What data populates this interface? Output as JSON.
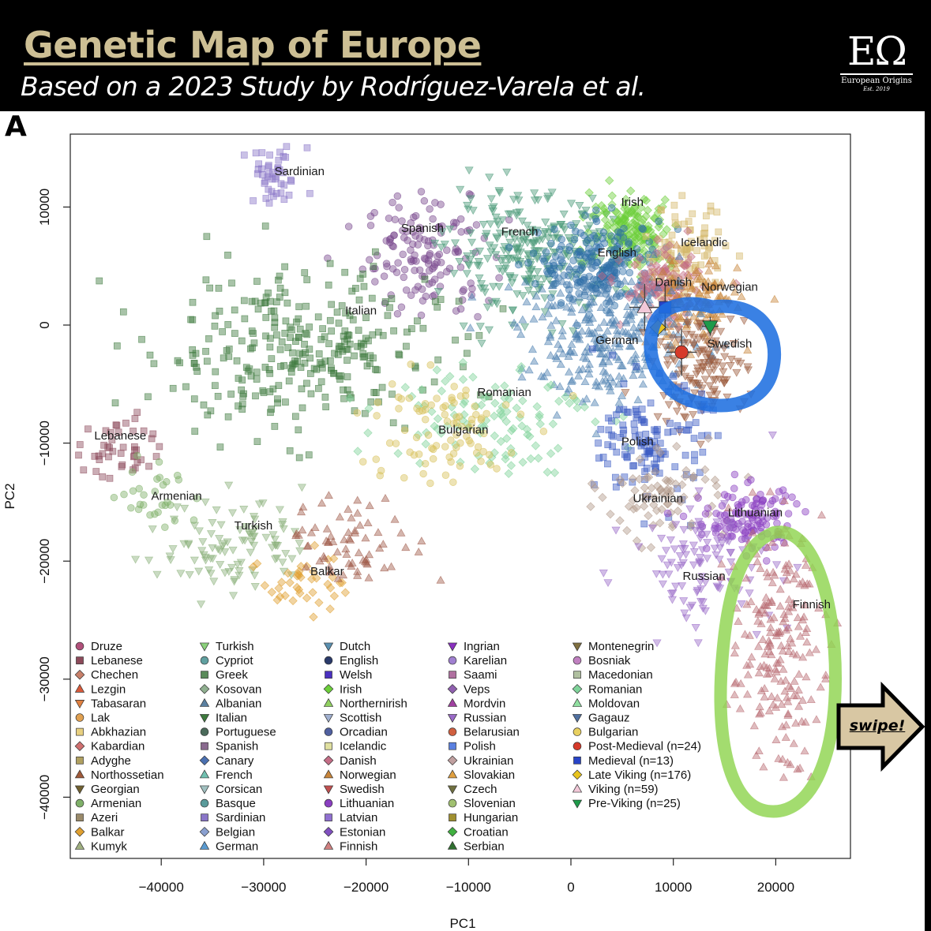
{
  "header": {
    "title": "Genetic Map of Europe",
    "subtitle": "Based on a 2023 Study by Rodríguez-Varela et al."
  },
  "logo": {
    "mark": "EΩ",
    "name": "European Origins",
    "est": "Est. 2019"
  },
  "panel_letter": "A",
  "swipe_label": "swipe!",
  "colors": {
    "highlight_blue": "#1f6fe0",
    "highlight_green": "#8fd44f",
    "arrow_fill": "#d8c7a3"
  },
  "chart_data": {
    "type": "scatter",
    "xlabel": "PC1",
    "ylabel": "PC2",
    "xlim": [
      -48000,
      27000
    ],
    "ylim": [
      -45000,
      16000
    ],
    "xticks": [
      -40000,
      -30000,
      -20000,
      -10000,
      0,
      10000,
      20000
    ],
    "yticks": [
      10000,
      0,
      -10000,
      -20000,
      -30000,
      -40000
    ],
    "grid": false,
    "legend": "bottom, five columns",
    "clusters": [
      {
        "name": "Sardinian",
        "x": -29000,
        "y": 12500,
        "sx": 1600,
        "sy": 1300,
        "n": 45,
        "color": "#8a76c8",
        "shape": "square"
      },
      {
        "name": "Spanish",
        "x": -14000,
        "y": 6000,
        "sx": 3000,
        "sy": 2500,
        "n": 140,
        "color": "#7a4a8f",
        "shape": "circle"
      },
      {
        "name": "Italian",
        "x": -27000,
        "y": -2000,
        "sx": 7000,
        "sy": 3500,
        "n": 300,
        "color": "#3d7a3d",
        "shape": "square"
      },
      {
        "name": "French",
        "x": -4000,
        "y": 6000,
        "sx": 4000,
        "sy": 2500,
        "n": 260,
        "color": "#4a9a78",
        "shape": "triangle-down"
      },
      {
        "name": "Irish",
        "x": 6000,
        "y": 8000,
        "sx": 2000,
        "sy": 1500,
        "n": 170,
        "color": "#6ccf3a",
        "shape": "diamond"
      },
      {
        "name": "English",
        "x": 3000,
        "y": 5000,
        "sx": 3000,
        "sy": 1800,
        "n": 220,
        "color": "#2f6fa8",
        "shape": "circle"
      },
      {
        "name": "Icelandic",
        "x": 11000,
        "y": 6000,
        "sx": 2000,
        "sy": 2000,
        "n": 90,
        "color": "#d4b96a",
        "shape": "square"
      },
      {
        "name": "Danish",
        "x": 9000,
        "y": 3000,
        "sx": 2000,
        "sy": 1500,
        "n": 110,
        "color": "#c46d86",
        "shape": "diamond"
      },
      {
        "name": "Norwegian",
        "x": 12000,
        "y": 2000,
        "sx": 2200,
        "sy": 2000,
        "n": 120,
        "color": "#c8853a",
        "shape": "triangle"
      },
      {
        "name": "German",
        "x": 4000,
        "y": -1000,
        "sx": 4500,
        "sy": 2800,
        "n": 280,
        "color": "#4b7fb0",
        "shape": "triangle"
      },
      {
        "name": "Swedish",
        "x": 12500,
        "y": -3500,
        "sx": 2300,
        "sy": 2300,
        "n": 140,
        "color": "#9c5a3c",
        "shape": "triangle-down"
      },
      {
        "name": "Romanian",
        "x": -8000,
        "y": -7500,
        "sx": 5000,
        "sy": 2500,
        "n": 110,
        "color": "#7fd39a",
        "shape": "diamond"
      },
      {
        "name": "Bulgarian",
        "x": -13000,
        "y": -9000,
        "sx": 4000,
        "sy": 2500,
        "n": 90,
        "color": "#d8c25a",
        "shape": "circle"
      },
      {
        "name": "Polish",
        "x": 8000,
        "y": -10000,
        "sx": 2500,
        "sy": 2500,
        "n": 130,
        "color": "#3b5cc4",
        "shape": "square"
      },
      {
        "name": "Ukrainian",
        "x": 9000,
        "y": -14500,
        "sx": 3000,
        "sy": 1800,
        "n": 80,
        "color": "#b29a8a",
        "shape": "diamond"
      },
      {
        "name": "Lithuanian",
        "x": 17000,
        "y": -16500,
        "sx": 2500,
        "sy": 1500,
        "n": 120,
        "color": "#8a3fc0",
        "shape": "circle"
      },
      {
        "name": "Russian",
        "x": 13000,
        "y": -20000,
        "sx": 3500,
        "sy": 2500,
        "n": 110,
        "color": "#9a6ac8",
        "shape": "triangle-down"
      },
      {
        "name": "Finnish",
        "x": 20000,
        "y": -27000,
        "sx": 2200,
        "sy": 5000,
        "n": 200,
        "color": "#b86a72",
        "shape": "triangle"
      },
      {
        "name": "Lebanese",
        "x": -44000,
        "y": -10500,
        "sx": 1800,
        "sy": 1500,
        "n": 45,
        "color": "#8c4a5a",
        "shape": "square"
      },
      {
        "name": "Armenian",
        "x": -40000,
        "y": -14500,
        "sx": 2000,
        "sy": 1500,
        "n": 30,
        "color": "#7fb069",
        "shape": "circle"
      },
      {
        "name": "Turkish",
        "x": -33000,
        "y": -18500,
        "sx": 3500,
        "sy": 2000,
        "n": 100,
        "color": "#8ab07a",
        "shape": "triangle-down"
      },
      {
        "name": "Balkar",
        "x": -26000,
        "y": -21500,
        "sx": 2000,
        "sy": 1500,
        "n": 40,
        "color": "#e0a030",
        "shape": "diamond"
      },
      {
        "name": "Kumyk",
        "x": -21000,
        "y": -18500,
        "sx": 3500,
        "sy": 1800,
        "n": 70,
        "color": "#a05a4a",
        "shape": "triangle"
      }
    ],
    "labels": [
      {
        "text": "Sardinian",
        "x": -26500,
        "y": 12700
      },
      {
        "text": "Spanish",
        "x": -14500,
        "y": 7900
      },
      {
        "text": "French",
        "x": -5000,
        "y": 7600
      },
      {
        "text": "Irish",
        "x": 6000,
        "y": 10100
      },
      {
        "text": "English",
        "x": 4500,
        "y": 5800
      },
      {
        "text": "Icelandic",
        "x": 13000,
        "y": 6700
      },
      {
        "text": "Danish",
        "x": 10000,
        "y": 3300
      },
      {
        "text": "Norwegian",
        "x": 15500,
        "y": 2900
      },
      {
        "text": "Italian",
        "x": -20500,
        "y": 900
      },
      {
        "text": "German",
        "x": 4500,
        "y": -1600
      },
      {
        "text": "Swedish",
        "x": 15500,
        "y": -1900
      },
      {
        "text": "Romanian",
        "x": -6500,
        "y": -6000
      },
      {
        "text": "Bulgarian",
        "x": -10500,
        "y": -9200
      },
      {
        "text": "Polish",
        "x": 6500,
        "y": -10200
      },
      {
        "text": "Ukrainian",
        "x": 8500,
        "y": -15000
      },
      {
        "text": "Lithuanian",
        "x": 18000,
        "y": -16200
      },
      {
        "text": "Russian",
        "x": 13000,
        "y": -21600
      },
      {
        "text": "Finnish",
        "x": 23500,
        "y": -24000
      },
      {
        "text": "Lebanese",
        "x": -44000,
        "y": -9700
      },
      {
        "text": "Armenian",
        "x": -38500,
        "y": -14800
      },
      {
        "text": "Turkish",
        "x": -31000,
        "y": -17300
      },
      {
        "text": "Balkar",
        "x": -23800,
        "y": -21200
      }
    ],
    "ancient_samples": [
      {
        "name": "Post-Medieval (n=24)",
        "x": 10800,
        "y": -2300,
        "ex": 1500,
        "ey": 2000,
        "color": "#d63a2a",
        "shape": "circle"
      },
      {
        "name": "Medieval (n=13)",
        "x": 9200,
        "y": 1500,
        "ex": 1500,
        "ey": 2000,
        "color": "#2844c8",
        "shape": "square"
      },
      {
        "name": "Late Viking (n=176)",
        "x": 8500,
        "y": -200,
        "ex": 800,
        "ey": 800,
        "color": "#e8c41e",
        "shape": "diamond"
      },
      {
        "name": "Viking (n=59)",
        "x": 7200,
        "y": 1500,
        "ex": 1500,
        "ey": 2000,
        "color": "#f2c8d8",
        "shape": "triangle"
      },
      {
        "name": "Pre-Viking (n=25)",
        "x": 13600,
        "y": -100,
        "ex": 800,
        "ey": 800,
        "color": "#1e9a4a",
        "shape": "triangle-down"
      }
    ],
    "legend_columns": [
      [
        {
          "label": "Druze",
          "shape": "circle",
          "color": "#b0507a"
        },
        {
          "label": "Lebanese",
          "shape": "square",
          "color": "#8c4a5a"
        },
        {
          "label": "Chechen",
          "shape": "diamond",
          "color": "#c8806a"
        },
        {
          "label": "Lezgin",
          "shape": "triangle",
          "color": "#d85a3a"
        },
        {
          "label": "Tabasaran",
          "shape": "triangle-down",
          "color": "#e08040"
        },
        {
          "label": "Lak",
          "shape": "circle",
          "color": "#e0a050"
        },
        {
          "label": "Abkhazian",
          "shape": "square",
          "color": "#e8d080"
        },
        {
          "label": "Kabardian",
          "shape": "diamond",
          "color": "#d07070"
        },
        {
          "label": "Adyghe",
          "shape": "square",
          "color": "#b0a060"
        },
        {
          "label": "Northossetian",
          "shape": "triangle",
          "color": "#a05a3a"
        },
        {
          "label": "Georgian",
          "shape": "triangle-down",
          "color": "#706030"
        },
        {
          "label": "Armenian",
          "shape": "circle",
          "color": "#7fb069"
        },
        {
          "label": "Azeri",
          "shape": "square",
          "color": "#9a8a6a"
        },
        {
          "label": "Balkar",
          "shape": "diamond",
          "color": "#e0a030"
        },
        {
          "label": "Kumyk",
          "shape": "triangle",
          "color": "#a0b080"
        }
      ],
      [
        {
          "label": "Turkish",
          "shape": "triangle-down",
          "color": "#8ad07a"
        },
        {
          "label": "Cypriot",
          "shape": "circle",
          "color": "#60a0a0"
        },
        {
          "label": "Greek",
          "shape": "square",
          "color": "#5a8a5a"
        },
        {
          "label": "Kosovan",
          "shape": "diamond",
          "color": "#90b090"
        },
        {
          "label": "Albanian",
          "shape": "triangle",
          "color": "#5a80a0"
        },
        {
          "label": "Italian",
          "shape": "triangle-down",
          "color": "#3d7a3d"
        },
        {
          "label": "Portuguese",
          "shape": "circle",
          "color": "#4a6a5a"
        },
        {
          "label": "Spanish",
          "shape": "square",
          "color": "#8a6a8f"
        },
        {
          "label": "Canary",
          "shape": "diamond",
          "color": "#4a70b0"
        },
        {
          "label": "French",
          "shape": "triangle",
          "color": "#70c0b0"
        },
        {
          "label": "Corsican",
          "shape": "triangle-down",
          "color": "#a0c0c0"
        },
        {
          "label": "Basque",
          "shape": "circle",
          "color": "#5a9a9a"
        },
        {
          "label": "Sardinian",
          "shape": "square",
          "color": "#8a76c8"
        },
        {
          "label": "Belgian",
          "shape": "diamond",
          "color": "#8aa0d0"
        },
        {
          "label": "German",
          "shape": "triangle",
          "color": "#5a9ad0"
        }
      ],
      [
        {
          "label": "Dutch",
          "shape": "triangle-down",
          "color": "#5a90b0"
        },
        {
          "label": "English",
          "shape": "circle",
          "color": "#2a3a6a"
        },
        {
          "label": "Welsh",
          "shape": "square",
          "color": "#4a30c0"
        },
        {
          "label": "Irish",
          "shape": "diamond",
          "color": "#6ccf3a"
        },
        {
          "label": "Northernirish",
          "shape": "triangle",
          "color": "#90d060"
        },
        {
          "label": "Scottish",
          "shape": "triangle-down",
          "color": "#a0b0d0"
        },
        {
          "label": "Orcadian",
          "shape": "circle",
          "color": "#5060a0"
        },
        {
          "label": "Icelandic",
          "shape": "square",
          "color": "#e0e0a0"
        },
        {
          "label": "Danish",
          "shape": "diamond",
          "color": "#c46d86"
        },
        {
          "label": "Norwegian",
          "shape": "triangle",
          "color": "#c8853a"
        },
        {
          "label": "Swedish",
          "shape": "triangle-down",
          "color": "#c05050"
        },
        {
          "label": "Lithuanian",
          "shape": "circle",
          "color": "#8a3fc0"
        },
        {
          "label": "Latvian",
          "shape": "square",
          "color": "#9070d0"
        },
        {
          "label": "Estonian",
          "shape": "diamond",
          "color": "#8050c0"
        },
        {
          "label": "Finnish",
          "shape": "triangle",
          "color": "#d08080"
        }
      ],
      [
        {
          "label": "Ingrian",
          "shape": "triangle-down",
          "color": "#8a30c0"
        },
        {
          "label": "Karelian",
          "shape": "circle",
          "color": "#a080d0"
        },
        {
          "label": "Saami",
          "shape": "square",
          "color": "#b070a0"
        },
        {
          "label": "Veps",
          "shape": "diamond",
          "color": "#9060b0"
        },
        {
          "label": "Mordvin",
          "shape": "triangle",
          "color": "#a040a0"
        },
        {
          "label": "Russian",
          "shape": "triangle-down",
          "color": "#9a6ac8"
        },
        {
          "label": "Belarusian",
          "shape": "circle",
          "color": "#d06040"
        },
        {
          "label": "Polish",
          "shape": "square",
          "color": "#5a80e0"
        },
        {
          "label": "Ukrainian",
          "shape": "diamond",
          "color": "#c0a0a0"
        },
        {
          "label": "Slovakian",
          "shape": "triangle",
          "color": "#e0a040"
        },
        {
          "label": "Czech",
          "shape": "triangle-down",
          "color": "#707040"
        },
        {
          "label": "Slovenian",
          "shape": "circle",
          "color": "#a0c070"
        },
        {
          "label": "Hungarian",
          "shape": "square",
          "color": "#a09030"
        },
        {
          "label": "Croatian",
          "shape": "diamond",
          "color": "#40b040"
        },
        {
          "label": "Serbian",
          "shape": "triangle",
          "color": "#307030"
        }
      ],
      [
        {
          "label": "Montenegrin",
          "shape": "triangle-down",
          "color": "#807040"
        },
        {
          "label": "Bosniak",
          "shape": "circle",
          "color": "#c080c0"
        },
        {
          "label": "Macedonian",
          "shape": "square",
          "color": "#b0c0a0"
        },
        {
          "label": "Romanian",
          "shape": "diamond",
          "color": "#7fd39a"
        },
        {
          "label": "Moldovan",
          "shape": "triangle",
          "color": "#90e0a0"
        },
        {
          "label": "Gagauz",
          "shape": "triangle-down",
          "color": "#5070a0"
        },
        {
          "label": "Bulgarian",
          "shape": "circle",
          "color": "#e8d060"
        },
        {
          "label": "Post-Medieval (n=24)",
          "shape": "circle",
          "color": "#d63a2a"
        },
        {
          "label": "Medieval (n=13)",
          "shape": "square",
          "color": "#2844c8"
        },
        {
          "label": "Late Viking (n=176)",
          "shape": "diamond",
          "color": "#e8c41e"
        },
        {
          "label": "Viking (n=59)",
          "shape": "triangle",
          "color": "#f2c8d8"
        },
        {
          "label": "Pre-Viking (n=25)",
          "shape": "triangle-down",
          "color": "#1e9a4a"
        }
      ]
    ]
  }
}
